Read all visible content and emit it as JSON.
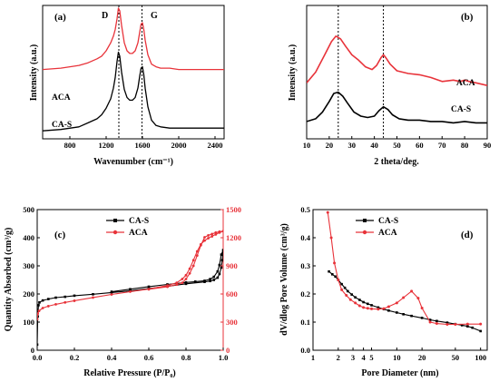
{
  "chart_data": [
    {
      "id": "a",
      "type": "line",
      "panel_label": "(a)",
      "xlabel": "Wavenumber (cm⁻¹)",
      "ylabel": "Intensity (a.u.)",
      "xlim": [
        500,
        2500
      ],
      "xticks": [
        800,
        1200,
        1600,
        2000,
        2400
      ],
      "vlines": [
        1340,
        1595
      ],
      "peak_labels": [
        {
          "text": "D",
          "x": 1340
        },
        {
          "text": "G",
          "x": 1595
        }
      ],
      "series": [
        {
          "name": "ACA",
          "color": "#e8333a",
          "x": [
            500,
            700,
            900,
            1000,
            1100,
            1150,
            1200,
            1250,
            1280,
            1300,
            1320,
            1335,
            1350,
            1370,
            1400,
            1430,
            1460,
            1490,
            1520,
            1550,
            1570,
            1585,
            1600,
            1615,
            1630,
            1660,
            1700,
            1750,
            1800,
            1900,
            2000,
            2100,
            2200,
            2300,
            2400,
            2500
          ],
          "y": [
            0.52,
            0.53,
            0.55,
            0.57,
            0.6,
            0.62,
            0.66,
            0.72,
            0.77,
            0.82,
            0.9,
            0.98,
            0.96,
            0.85,
            0.72,
            0.66,
            0.64,
            0.64,
            0.66,
            0.72,
            0.8,
            0.86,
            0.87,
            0.82,
            0.74,
            0.63,
            0.56,
            0.54,
            0.53,
            0.53,
            0.52,
            0.52,
            0.52,
            0.52,
            0.52,
            0.52
          ]
        },
        {
          "name": "CA-S",
          "color": "#000000",
          "x": [
            500,
            700,
            900,
            1000,
            1100,
            1150,
            1200,
            1250,
            1280,
            1300,
            1320,
            1335,
            1350,
            1370,
            1400,
            1430,
            1460,
            1490,
            1520,
            1550,
            1570,
            1585,
            1600,
            1615,
            1630,
            1660,
            1700,
            1750,
            1800,
            1900,
            2000,
            2100,
            2200,
            2300,
            2400,
            2500
          ],
          "y": [
            0.06,
            0.07,
            0.09,
            0.12,
            0.15,
            0.18,
            0.23,
            0.3,
            0.38,
            0.46,
            0.58,
            0.65,
            0.62,
            0.5,
            0.37,
            0.31,
            0.29,
            0.29,
            0.31,
            0.38,
            0.47,
            0.53,
            0.54,
            0.48,
            0.38,
            0.24,
            0.14,
            0.1,
            0.09,
            0.08,
            0.08,
            0.08,
            0.08,
            0.08,
            0.08,
            0.08
          ]
        }
      ],
      "legend": [
        {
          "name": "ACA"
        },
        {
          "name": "CA-S"
        }
      ]
    },
    {
      "id": "b",
      "type": "line",
      "panel_label": "(b)",
      "xlabel": "2 theta/deg.",
      "ylabel": "Intensity (a.u.)",
      "xlim": [
        10,
        90
      ],
      "xticks": [
        10,
        20,
        30,
        40,
        50,
        60,
        70,
        80,
        90
      ],
      "vlines": [
        24,
        44
      ],
      "series": [
        {
          "name": "ACA",
          "color": "#e8333a",
          "x": [
            10,
            14,
            18,
            21,
            23,
            25,
            27,
            30,
            33,
            36,
            39,
            41,
            43,
            44,
            45,
            47,
            50,
            55,
            60,
            65,
            70,
            75,
            78,
            80,
            82,
            85,
            90
          ],
          "y": [
            0.42,
            0.5,
            0.63,
            0.73,
            0.77,
            0.75,
            0.7,
            0.63,
            0.59,
            0.54,
            0.52,
            0.55,
            0.61,
            0.63,
            0.61,
            0.56,
            0.51,
            0.49,
            0.48,
            0.46,
            0.43,
            0.44,
            0.43,
            0.44,
            0.43,
            0.42,
            0.4
          ]
        },
        {
          "name": "CA-S",
          "color": "#000000",
          "x": [
            10,
            14,
            17,
            20,
            22,
            24,
            26,
            28,
            31,
            34,
            37,
            40,
            42,
            44,
            46,
            48,
            51,
            55,
            60,
            65,
            70,
            75,
            80,
            85,
            90
          ],
          "y": [
            0.13,
            0.15,
            0.2,
            0.28,
            0.34,
            0.35,
            0.32,
            0.27,
            0.2,
            0.17,
            0.16,
            0.17,
            0.21,
            0.24,
            0.22,
            0.18,
            0.15,
            0.14,
            0.14,
            0.13,
            0.13,
            0.12,
            0.13,
            0.12,
            0.12
          ]
        }
      ],
      "legend": [
        {
          "name": "ACA"
        },
        {
          "name": "CA-S"
        }
      ]
    },
    {
      "id": "c",
      "type": "line",
      "panel_label": "(c)",
      "xlabel": "Relative Pressure (P/P₀)",
      "ylabel": "Quantity Absorbed (cm³/g)",
      "xlim": [
        0,
        1.0
      ],
      "xticks": [
        0.0,
        0.2,
        0.4,
        0.6,
        0.8,
        1.0
      ],
      "ylim_left": [
        0,
        500
      ],
      "yticks_left": [
        0,
        100,
        200,
        300,
        400,
        500
      ],
      "ylim_right": [
        0,
        1500
      ],
      "yticks_right": [
        0,
        300,
        600,
        900,
        1200,
        1500
      ],
      "series": [
        {
          "name": "CA-S",
          "color": "#000000",
          "axis": "left",
          "x": [
            0.0,
            0.003,
            0.007,
            0.012,
            0.03,
            0.06,
            0.1,
            0.15,
            0.2,
            0.3,
            0.4,
            0.5,
            0.6,
            0.7,
            0.8,
            0.9,
            0.93,
            0.95,
            0.97,
            0.98,
            0.99,
            0.995,
            1.0,
            0.99,
            0.98,
            0.97,
            0.95,
            0.93,
            0.9,
            0.85,
            0.8,
            0.7,
            0.6,
            0.5,
            0.4
          ],
          "y": [
            20,
            120,
            160,
            170,
            177,
            182,
            187,
            190,
            194,
            199,
            205,
            211,
            219,
            227,
            236,
            243,
            246,
            250,
            258,
            271,
            294,
            320,
            356,
            340,
            303,
            280,
            261,
            253,
            247,
            244,
            241,
            234,
            226,
            217,
            208
          ]
        },
        {
          "name": "ACA",
          "color": "#e8333a",
          "axis": "right",
          "x": [
            0.0,
            0.003,
            0.01,
            0.03,
            0.06,
            0.1,
            0.15,
            0.2,
            0.3,
            0.4,
            0.5,
            0.6,
            0.7,
            0.75,
            0.78,
            0.8,
            0.82,
            0.84,
            0.86,
            0.88,
            0.9,
            0.92,
            0.94,
            0.96,
            0.98,
            1.0,
            0.98,
            0.96,
            0.94,
            0.92,
            0.9,
            0.88,
            0.86,
            0.84,
            0.82,
            0.8,
            0.78,
            0.75,
            0.7,
            0.6
          ],
          "y": [
            330,
            390,
            420,
            450,
            470,
            490,
            510,
            528,
            562,
            595,
            625,
            652,
            690,
            720,
            760,
            800,
            870,
            960,
            1055,
            1130,
            1170,
            1195,
            1215,
            1235,
            1255,
            1270,
            1265,
            1255,
            1240,
            1225,
            1205,
            1120,
            1010,
            900,
            820,
            760,
            720,
            700,
            676,
            650
          ]
        }
      ],
      "legend": [
        {
          "name": "CA-S"
        },
        {
          "name": "ACA"
        }
      ]
    },
    {
      "id": "d",
      "type": "line",
      "panel_label": "(d)",
      "xlabel": "Pore Diameter (nm)",
      "ylabel": "dV/dlog Pore Volume (cm³/g)",
      "xscale": "log",
      "xlim": [
        1,
        120
      ],
      "xticks": [
        1,
        2,
        3,
        4,
        5,
        10,
        20,
        50,
        100
      ],
      "ylim": [
        0,
        0.5
      ],
      "yticks": [
        0.0,
        0.1,
        0.2,
        0.3,
        0.4,
        0.5
      ],
      "series": [
        {
          "name": "CA-S",
          "color": "#000000",
          "x": [
            1.55,
            1.7,
            1.85,
            2.0,
            2.2,
            2.4,
            2.6,
            2.9,
            3.2,
            3.6,
            4.0,
            4.5,
            5.0,
            6.0,
            7.0,
            8.0,
            10,
            12,
            15,
            20,
            25,
            30,
            40,
            50,
            60,
            70,
            80,
            100
          ],
          "y": [
            0.28,
            0.27,
            0.262,
            0.25,
            0.235,
            0.222,
            0.21,
            0.198,
            0.188,
            0.179,
            0.171,
            0.165,
            0.16,
            0.152,
            0.146,
            0.141,
            0.134,
            0.128,
            0.122,
            0.115,
            0.108,
            0.104,
            0.098,
            0.093,
            0.089,
            0.085,
            0.08,
            0.068
          ]
        },
        {
          "name": "ACA",
          "color": "#e8333a",
          "x": [
            1.5,
            1.65,
            1.8,
            2.0,
            2.2,
            2.5,
            2.8,
            3.2,
            3.6,
            4.0,
            4.5,
            5.0,
            6.0,
            7.0,
            8.0,
            10,
            12,
            15,
            18,
            20,
            25,
            30,
            40,
            50,
            70,
            100
          ],
          "y": [
            0.49,
            0.4,
            0.31,
            0.25,
            0.215,
            0.195,
            0.18,
            0.168,
            0.158,
            0.152,
            0.149,
            0.147,
            0.146,
            0.148,
            0.155,
            0.168,
            0.187,
            0.21,
            0.185,
            0.15,
            0.1,
            0.095,
            0.092,
            0.092,
            0.093,
            0.093
          ]
        }
      ],
      "legend": [
        {
          "name": "CA-S"
        },
        {
          "name": "ACA"
        }
      ]
    }
  ]
}
